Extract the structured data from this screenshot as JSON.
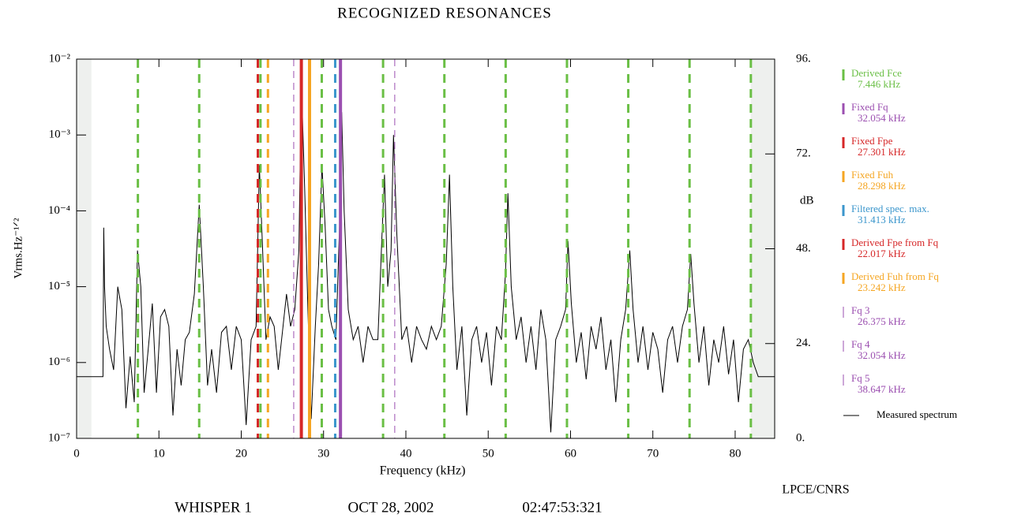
{
  "chart_data": {
    "type": "spectrum",
    "title": "RECOGNIZED RESONANCES",
    "x_label": "Frequency (kHz)",
    "y_label": "Vrms.Hz⁻¹ᐟ²",
    "y2_label": "dB",
    "xlim": [
      0,
      84.8
    ],
    "xticks": [
      0,
      10,
      20,
      30,
      40,
      50,
      60,
      70,
      80
    ],
    "ylim": [
      1e-07,
      0.01
    ],
    "log_y": true,
    "yticks": [
      {
        "value": 1e-07,
        "label": "10⁻⁷"
      },
      {
        "value": 1e-06,
        "label": "10⁻⁶"
      },
      {
        "value": 1e-05,
        "label": "10⁻⁵"
      },
      {
        "value": 0.0001,
        "label": "10⁻⁴"
      },
      {
        "value": 0.001,
        "label": "10⁻³"
      },
      {
        "value": 0.01,
        "label": "10⁻²"
      }
    ],
    "y2lim": [
      0,
      96
    ],
    "y2ticks": [
      {
        "value": 0,
        "label": "0."
      },
      {
        "value": 24,
        "label": "24."
      },
      {
        "value": 48,
        "label": "48."
      },
      {
        "value": 72,
        "label": "72."
      },
      {
        "value": 96,
        "label": "96."
      }
    ],
    "shaded_ranges": [
      [
        0,
        1.8
      ],
      [
        81.9,
        84.8
      ]
    ],
    "markers": [
      {
        "name": "Derived Fce",
        "label": "7.446 kHz",
        "color": "#6abf45",
        "style": "dashed",
        "x": [
          7.446,
          14.892,
          22.338,
          29.784,
          37.23,
          44.676,
          52.122,
          59.568,
          67.014,
          74.46,
          81.906
        ]
      },
      {
        "name": "Fixed Fq",
        "label": "32.054 kHz",
        "color": "#9b4fb0",
        "style": "solid",
        "x": [
          32.054
        ]
      },
      {
        "name": "Fixed Fpe",
        "label": "27.301 kHz",
        "color": "#d62728",
        "style": "solid",
        "x": [
          27.301
        ]
      },
      {
        "name": "Fixed Fuh",
        "label": "28.298 kHz",
        "color": "#f5a623",
        "style": "solid",
        "x": [
          28.298
        ]
      },
      {
        "name": "Filtered spec. max.",
        "label": "31.413 kHz",
        "color": "#3b96cc",
        "style": "dashed",
        "x": [
          31.413
        ]
      },
      {
        "name": "Derived Fpe from Fq",
        "label": "22.017 kHz",
        "color": "#d62728",
        "style": "dashed",
        "x": [
          22.017
        ]
      },
      {
        "name": "Derived Fuh from Fq",
        "label": "23.242 kHz",
        "color": "#f5a623",
        "style": "dashed",
        "x": [
          23.242
        ]
      },
      {
        "name": "Fq 3",
        "label": "26.375 kHz",
        "color": "#9b4fb0",
        "style": "thin",
        "x": [
          26.375
        ]
      },
      {
        "name": "Fq 4",
        "label": "32.054 kHz",
        "color": "#9b4fb0",
        "style": "thin",
        "x": [
          32.054
        ]
      },
      {
        "name": "Fq 5",
        "label": "38.647 kHz",
        "color": "#9b4fb0",
        "style": "thin",
        "x": [
          38.647
        ]
      }
    ],
    "series": [
      {
        "name": "Measured spectrum",
        "color": "#000000",
        "x": [
          0,
          3.2,
          3.3,
          3.4,
          3.6,
          4,
          4.5,
          5,
          5.5,
          6,
          6.5,
          7,
          7.4,
          7.8,
          8.2,
          8.7,
          9.2,
          9.7,
          10.2,
          10.7,
          11.2,
          11.7,
          12.2,
          12.7,
          13.2,
          13.7,
          14.3,
          14.9,
          15.4,
          15.9,
          16.4,
          17,
          17.6,
          18.2,
          18.8,
          19.4,
          20,
          20.6,
          21.2,
          21.8,
          22.2,
          22.6,
          23,
          23.5,
          24,
          24.5,
          25,
          25.5,
          26,
          26.5,
          27,
          27.3,
          27.7,
          28.1,
          28.5,
          29,
          29.4,
          29.8,
          30.2,
          30.6,
          31,
          31.5,
          32,
          32.2,
          32.5,
          33,
          33.6,
          34.2,
          34.8,
          35.4,
          36,
          36.6,
          37.1,
          37.4,
          37.8,
          38.2,
          38.5,
          38.9,
          39.5,
          40.1,
          40.7,
          41.3,
          41.9,
          42.5,
          43.1,
          43.7,
          44.3,
          44.9,
          45.3,
          45.7,
          46.2,
          46.8,
          47.4,
          48,
          48.6,
          49.2,
          49.8,
          50.4,
          51,
          51.6,
          52.1,
          52.4,
          52.8,
          53.4,
          54,
          54.6,
          55.2,
          55.8,
          56.4,
          57,
          57.6,
          58.2,
          58.8,
          59.4,
          59.7,
          60.1,
          60.7,
          61.3,
          61.9,
          62.5,
          63.1,
          63.7,
          64.3,
          64.9,
          65.5,
          66.1,
          66.7,
          67.2,
          67.6,
          68.2,
          68.8,
          69.4,
          70,
          70.6,
          71.2,
          71.8,
          72.4,
          73,
          73.6,
          74.2,
          74.6,
          75,
          75.6,
          76.2,
          76.8,
          77.4,
          78,
          78.6,
          79.2,
          79.8,
          80.4,
          81,
          81.6,
          82.2,
          82.8,
          84.8
        ],
        "values": [
          6.5e-07,
          6.5e-07,
          6e-05,
          1e-05,
          3e-06,
          1.5e-06,
          8e-07,
          1e-05,
          5e-06,
          2.5e-07,
          1.2e-06,
          3e-07,
          3e-05,
          1e-05,
          4e-07,
          1.5e-06,
          6e-06,
          4e-07,
          4e-06,
          5e-06,
          3e-06,
          2e-07,
          1.5e-06,
          5e-07,
          2e-06,
          2.5e-06,
          8e-06,
          0.00012,
          1e-05,
          5e-07,
          1.5e-06,
          4e-07,
          2.5e-06,
          3e-06,
          8e-07,
          3e-06,
          2e-06,
          1.5e-07,
          2e-06,
          3e-06,
          0.0004,
          3e-05,
          2e-06,
          4e-06,
          3e-06,
          8e-07,
          2.5e-06,
          8e-06,
          3e-06,
          5e-06,
          3e-05,
          0.005,
          0.0002,
          5e-06,
          1.8e-07,
          3e-06,
          2e-05,
          0.0004,
          6e-05,
          5e-06,
          3e-06,
          2e-06,
          0.0001,
          0.002,
          0.0001,
          5e-06,
          2e-06,
          3e-06,
          1e-06,
          3e-06,
          2e-06,
          2e-06,
          5e-05,
          0.0003,
          1e-05,
          3e-05,
          0.001,
          5e-05,
          2e-06,
          3e-06,
          1e-06,
          3e-06,
          2e-06,
          1.5e-06,
          3e-06,
          2e-06,
          3e-06,
          2e-05,
          0.0003,
          1e-05,
          8e-07,
          3e-06,
          2e-07,
          2e-06,
          3e-06,
          1e-06,
          2.5e-06,
          5e-07,
          3e-06,
          2e-06,
          1.5e-05,
          0.00017,
          1e-05,
          2e-06,
          4e-06,
          1e-06,
          3e-06,
          8e-07,
          5e-06,
          2e-06,
          1.2e-07,
          2e-06,
          3e-06,
          5e-06,
          4e-05,
          6e-06,
          1e-06,
          2.5e-06,
          6e-07,
          3e-06,
          1.5e-06,
          4e-06,
          8e-07,
          2e-06,
          3e-07,
          2e-06,
          5e-06,
          3e-05,
          5e-06,
          1e-06,
          3e-06,
          8e-07,
          2.5e-06,
          1.5e-06,
          4e-07,
          2e-06,
          3e-06,
          1e-06,
          3e-06,
          5e-06,
          2.7e-05,
          6e-06,
          1e-06,
          3e-06,
          5e-07,
          2e-06,
          1e-06,
          3e-06,
          7e-07,
          2e-06,
          3e-07,
          1.5e-06,
          2e-06,
          1e-06,
          6.5e-07,
          6.5e-07
        ]
      }
    ],
    "footer": [
      "WHISPER 1",
      "OCT 28, 2002",
      "02:47:53:321"
    ],
    "credit": "LPCE/CNRS"
  }
}
